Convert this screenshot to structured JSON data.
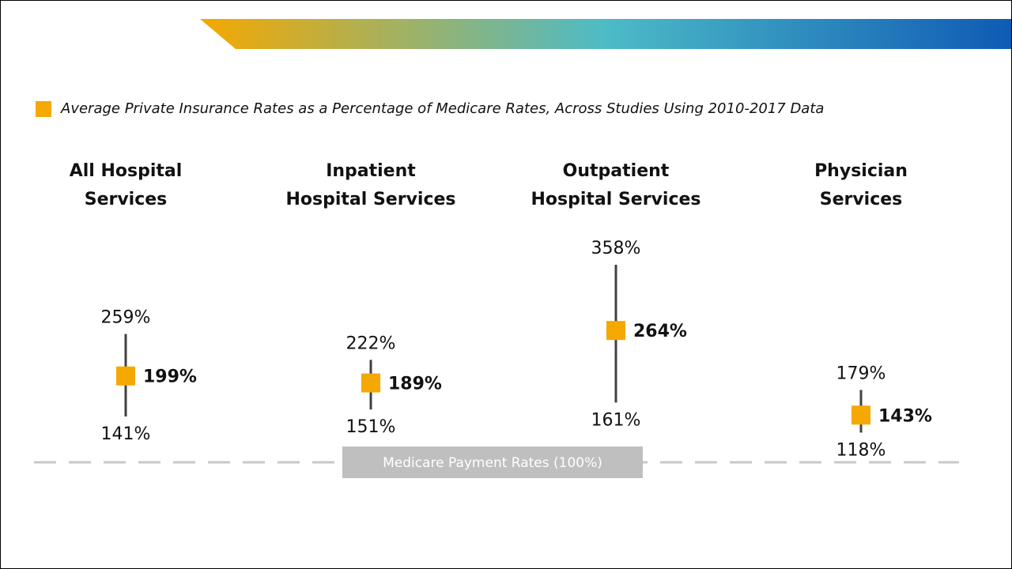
{
  "colors": {
    "accent": "#F5A800",
    "whisker": "#404040",
    "baseline": "#C8C8C8",
    "baseline_box": "#BFBFBF",
    "banner_stops": [
      "#F5A800",
      "#4DBBC7",
      "#0F5BB5"
    ]
  },
  "chart_data": {
    "type": "range",
    "title": "",
    "legend": "Average Private Insurance Rates as a Percentage of Medicare Rates, Across Studies Using 2010-2017 Data",
    "unit": "%",
    "ylim": [
      100,
      358
    ],
    "baseline": {
      "value": 100,
      "label": "Medicare Payment Rates (100%)"
    },
    "series": [
      {
        "category_lines": [
          "All Hospital",
          "Services"
        ],
        "max": 259,
        "avg": 199,
        "min": 141,
        "max_label": "259%",
        "avg_label": "199%",
        "min_label": "141%"
      },
      {
        "category_lines": [
          "Inpatient",
          "Hospital Services"
        ],
        "max": 222,
        "avg": 189,
        "min": 151,
        "max_label": "222%",
        "avg_label": "189%",
        "min_label": "151%"
      },
      {
        "category_lines": [
          "Outpatient",
          "Hospital Services"
        ],
        "max": 358,
        "avg": 264,
        "min": 161,
        "max_label": "358%",
        "avg_label": "264%",
        "min_label": "161%"
      },
      {
        "category_lines": [
          "Physician",
          "Services"
        ],
        "max": 179,
        "avg": 143,
        "min": 118,
        "max_label": "179%",
        "avg_label": "143%",
        "min_label": "118%"
      }
    ]
  }
}
